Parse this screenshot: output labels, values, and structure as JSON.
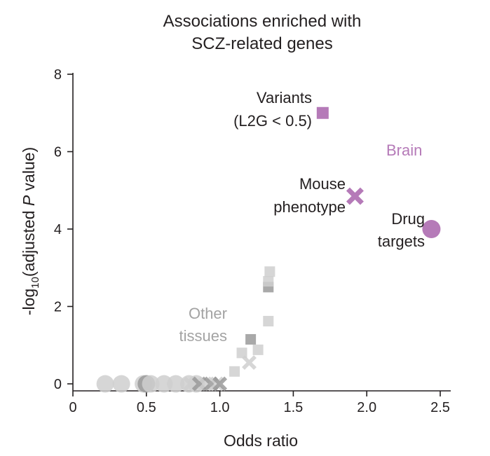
{
  "chart_data": {
    "type": "scatter",
    "title_lines": [
      "Associations enriched with",
      "SCZ-related genes"
    ],
    "xlabel": "Odds ratio",
    "ylabel": {
      "prefix": "-log",
      "subscript": "10",
      "middle": "(adjusted ",
      "italic": "P",
      "suffix": " value)"
    },
    "xlim": [
      0,
      2.5
    ],
    "ylim": [
      0,
      8
    ],
    "x_ticks": [
      0,
      0.5,
      1.0,
      1.5,
      2.0,
      2.5
    ],
    "x_tick_labels": [
      "0",
      "0.5",
      "1.0",
      "1.5",
      "2.0",
      "2.5"
    ],
    "y_ticks": [
      0,
      2,
      4,
      6,
      8
    ],
    "y_tick_labels": [
      "0",
      "2",
      "4",
      "6",
      "8"
    ],
    "colors": {
      "brain": "#b57ab8",
      "other_light": "#cfcfcf",
      "other_dark": "#9a9a9a",
      "text": "#231f20",
      "other_text": "#a3a3a3"
    },
    "groups": [
      {
        "name": "Brain",
        "points": [
          {
            "marker": "square",
            "x": 1.7,
            "y": 7.0
          },
          {
            "marker": "cross",
            "x": 1.92,
            "y": 4.85
          },
          {
            "marker": "circle",
            "x": 2.44,
            "y": 4.0
          }
        ]
      },
      {
        "name": "Other tissues",
        "points": [
          {
            "marker": "circle",
            "x": 0.22,
            "y": 0.0,
            "shade": "light"
          },
          {
            "marker": "circle",
            "x": 0.33,
            "y": 0.0,
            "shade": "light"
          },
          {
            "marker": "circle",
            "x": 0.48,
            "y": 0.0,
            "shade": "light"
          },
          {
            "marker": "circle",
            "x": 0.5,
            "y": 0.0,
            "shade": "dark"
          },
          {
            "marker": "circle",
            "x": 0.53,
            "y": 0.0,
            "shade": "light"
          },
          {
            "marker": "circle",
            "x": 0.62,
            "y": 0.0,
            "shade": "light"
          },
          {
            "marker": "circle",
            "x": 0.7,
            "y": 0.0,
            "shade": "light"
          },
          {
            "marker": "circle",
            "x": 0.79,
            "y": 0.0,
            "shade": "light"
          },
          {
            "marker": "circle",
            "x": 0.84,
            "y": 0.0,
            "shade": "light"
          },
          {
            "marker": "cross",
            "x": 0.8,
            "y": 0.0,
            "shade": "light"
          },
          {
            "marker": "cross",
            "x": 0.86,
            "y": 0.0,
            "shade": "dark"
          },
          {
            "marker": "cross",
            "x": 0.9,
            "y": 0.0,
            "shade": "light"
          },
          {
            "marker": "cross",
            "x": 0.94,
            "y": 0.0,
            "shade": "dark"
          },
          {
            "marker": "cross",
            "x": 0.98,
            "y": 0.0,
            "shade": "light"
          },
          {
            "marker": "cross",
            "x": 1.0,
            "y": 0.0,
            "shade": "dark"
          },
          {
            "marker": "square",
            "x": 1.1,
            "y": 0.32,
            "shade": "light"
          },
          {
            "marker": "square",
            "x": 1.15,
            "y": 0.8,
            "shade": "light"
          },
          {
            "marker": "cross",
            "x": 1.2,
            "y": 0.55,
            "shade": "light"
          },
          {
            "marker": "square",
            "x": 1.21,
            "y": 1.15,
            "shade": "dark"
          },
          {
            "marker": "square",
            "x": 1.26,
            "y": 0.88,
            "shade": "light"
          },
          {
            "marker": "square",
            "x": 1.33,
            "y": 1.62,
            "shade": "light"
          },
          {
            "marker": "square",
            "x": 1.33,
            "y": 2.5,
            "shade": "dark"
          },
          {
            "marker": "square",
            "x": 1.33,
            "y": 2.65,
            "shade": "light"
          },
          {
            "marker": "square",
            "x": 1.34,
            "y": 2.9,
            "shade": "light"
          }
        ]
      }
    ],
    "annotations": [
      {
        "lines": [
          "Variants",
          "(L2G < 0.5)"
        ],
        "group": "Brain"
      },
      {
        "lines": [
          "Mouse",
          "phenotype"
        ],
        "group": "Brain"
      },
      {
        "lines": [
          "Drug",
          "targets"
        ],
        "group": "Brain"
      },
      {
        "lines": [
          "Brain"
        ],
        "group": "Brain"
      },
      {
        "lines": [
          "Other",
          "tissues"
        ],
        "group": "Other tissues"
      }
    ]
  }
}
